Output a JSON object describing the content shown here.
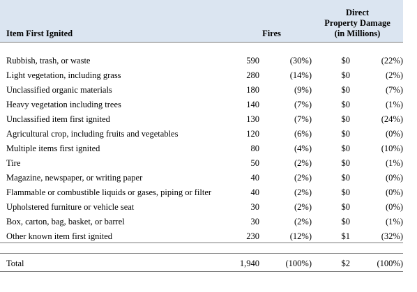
{
  "header": {
    "item": "Item First Ignited",
    "fires": "Fires",
    "damage": [
      "Direct",
      "Property Damage",
      "(in Millions)"
    ]
  },
  "rows": [
    [
      "Rubbish, trash, or waste",
      "590",
      "(30%)",
      "$0",
      "(22%)"
    ],
    [
      "Light vegetation, including grass",
      "280",
      "(14%)",
      "$0",
      "(2%)"
    ],
    [
      "Unclassified organic materials",
      "180",
      "(9%)",
      "$0",
      "(7%)"
    ],
    [
      "Heavy vegetation including trees",
      "140",
      "(7%)",
      "$0",
      "(1%)"
    ],
    [
      "Unclassified item first ignited",
      "130",
      "(7%)",
      "$0",
      "(24%)"
    ],
    [
      "Agricultural crop, including fruits and vegetables",
      "120",
      "(6%)",
      "$0",
      "(0%)"
    ],
    [
      "Multiple items first ignited",
      "80",
      "(4%)",
      "$0",
      "(10%)"
    ],
    [
      "Tire",
      "50",
      "(2%)",
      "$0",
      "(1%)"
    ],
    [
      "Magazine, newspaper, or writing paper",
      "40",
      "(2%)",
      "$0",
      "(0%)"
    ],
    [
      "Flammable or combustible liquids or gases, piping or filter",
      "40",
      "(2%)",
      "$0",
      "(0%)"
    ],
    [
      "Upholstered furniture or vehicle seat",
      "30",
      "(2%)",
      "$0",
      "(0%)"
    ],
    [
      "Box, carton, bag, basket, or barrel",
      "30",
      "(2%)",
      "$0",
      "(1%)"
    ],
    [
      "Other known item first ignited",
      "230",
      "(12%)",
      "$1",
      "(32%)"
    ]
  ],
  "total": [
    "Total",
    "1,940",
    "(100%)",
    "$2",
    "(100%)"
  ]
}
